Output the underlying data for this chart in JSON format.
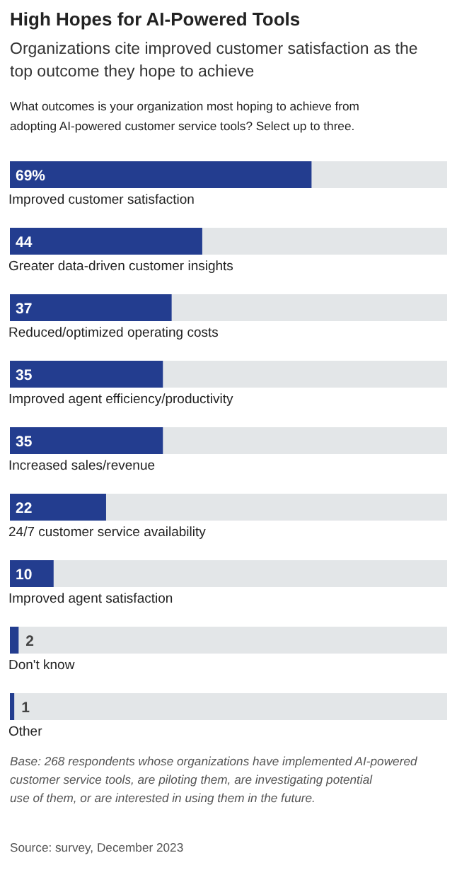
{
  "chart_data": {
    "type": "bar",
    "orientation": "horizontal",
    "title": "High Hopes for AI-Powered Tools",
    "subtitle": "Organizations cite improved customer satisfaction as the top outcome they hope to achieve",
    "categories": [
      "Improved customer satisfaction",
      "Greater data-driven customer insights",
      "Reduced/optimized operating costs",
      "Improved agent efficiency/productivity",
      "Increased sales/revenue",
      "24/7 customer service availability",
      "Improved agent satisfaction",
      "Don't know",
      "Other"
    ],
    "values": [
      69,
      44,
      37,
      35,
      35,
      22,
      10,
      2,
      1
    ],
    "value_labels": [
      "69%",
      "44",
      "37",
      "35",
      "35",
      "22",
      "10",
      "2",
      "1"
    ],
    "color": "#233d8f",
    "xlim": [
      0,
      100
    ],
    "annotations": [
      "What outcomes is your organization most hoping to achieve from adopting AI-powered customer service tools? Select up to three.",
      "Base: 268 respondents whose organizations have implemented AI-powered customer service tools, are piloting them, are investigating potential use of them, or are interested in using them in the future.",
      "Source: survey, December 2023"
    ]
  }
}
